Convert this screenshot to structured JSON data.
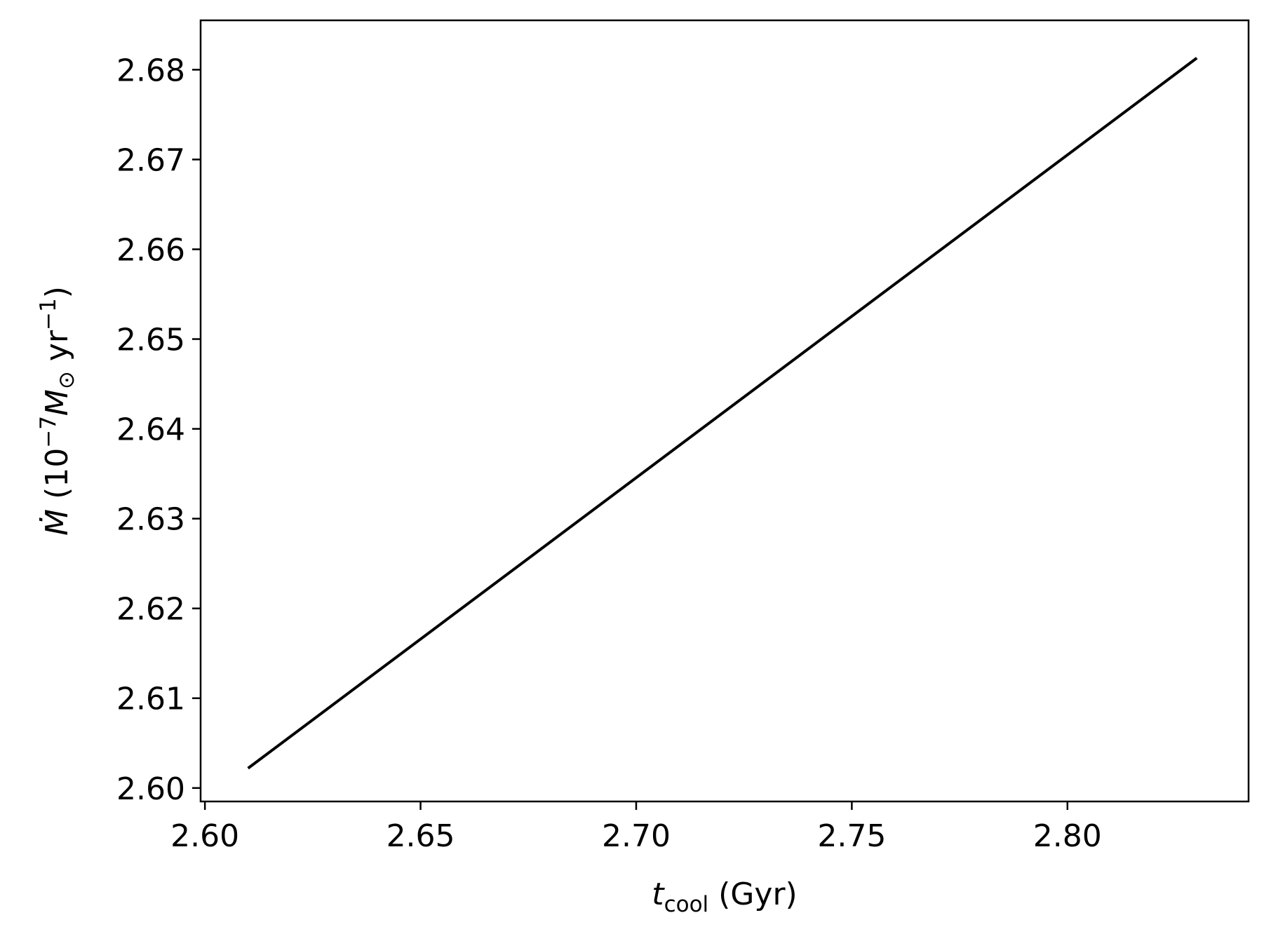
{
  "chart_data": {
    "type": "line",
    "title": "",
    "xlabel": "t_cool (Gyr)",
    "ylabel": "Ṁ (10^−7 M_⊙ yr^−1)",
    "xlabel_parts": {
      "var": "t",
      "sub": "cool",
      "unit": " (Gyr)"
    },
    "ylabel_parts": {
      "var": "Ṁ",
      "pre": " (10",
      "exp": "−7",
      "msun": "M",
      "sun_sub": "⊙",
      "yr": " yr",
      "exp2": "−1",
      "close": ")"
    },
    "xlim": [
      2.599,
      2.842
    ],
    "ylim": [
      2.5985,
      2.6855
    ],
    "xticks": [
      2.6,
      2.65,
      2.7,
      2.75,
      2.8
    ],
    "xtick_labels": [
      "2.60",
      "2.65",
      "2.70",
      "2.75",
      "2.80"
    ],
    "yticks": [
      2.6,
      2.61,
      2.62,
      2.63,
      2.64,
      2.65,
      2.66,
      2.67,
      2.68
    ],
    "ytick_labels": [
      "2.60",
      "2.61",
      "2.62",
      "2.63",
      "2.64",
      "2.65",
      "2.66",
      "2.67",
      "2.68"
    ],
    "grid": false,
    "series": [
      {
        "x": [
          2.61,
          2.83
        ],
        "y": [
          2.6022,
          2.6813
        ],
        "color": "#000000"
      }
    ]
  }
}
